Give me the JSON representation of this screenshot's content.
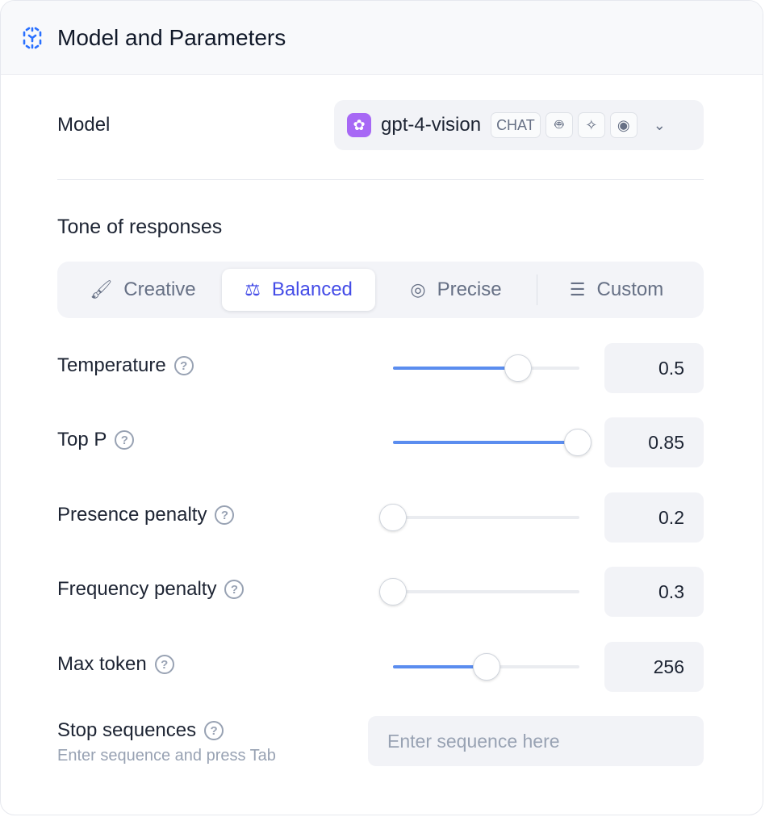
{
  "header": {
    "title": "Model and Parameters",
    "icon": "cube-dashed-icon",
    "accent": "#2970ff"
  },
  "model": {
    "label": "Model",
    "name": "gpt-4-vision",
    "badge": "CHAT",
    "capability_icons": [
      "robot-icon",
      "magic-wand-icon",
      "eye-icon"
    ]
  },
  "tone": {
    "title": "Tone of responses",
    "tabs": [
      {
        "label": "Creative",
        "icon": "brush-icon"
      },
      {
        "label": "Balanced",
        "icon": "scale-icon",
        "active": true
      },
      {
        "label": "Precise",
        "icon": "target-icon"
      },
      {
        "label": "Custom",
        "icon": "sliders-icon"
      }
    ]
  },
  "params": [
    {
      "label": "Temperature",
      "value": "0.5",
      "slider_fill": 0.67
    },
    {
      "label": "Top P",
      "value": "0.85",
      "slider_fill": 0.99
    },
    {
      "label": "Presence penalty",
      "value": "0.2",
      "slider_fill": 0
    },
    {
      "label": "Frequency penalty",
      "value": "0.3",
      "slider_fill": 0
    },
    {
      "label": "Max token",
      "value": "256",
      "slider_fill": 0.5
    }
  ],
  "stop": {
    "label": "Stop sequences",
    "hint": "Enter sequence and press Tab",
    "placeholder": "Enter sequence here"
  }
}
